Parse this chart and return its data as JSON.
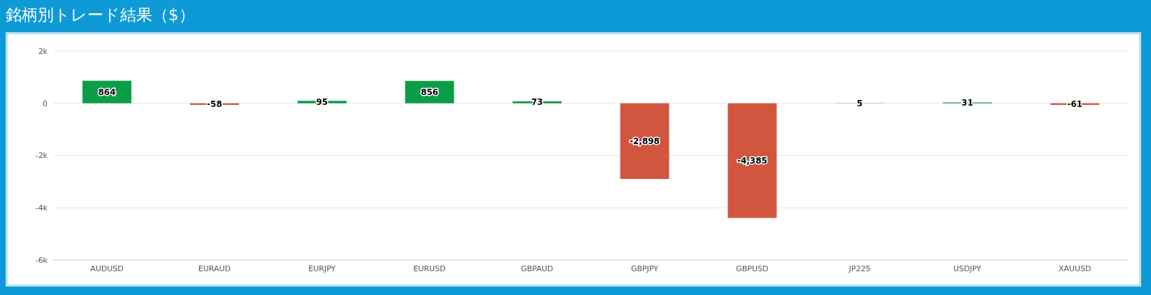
{
  "chart_data": {
    "type": "bar",
    "title": "銘柄別トレード結果（$）",
    "categories": [
      "AUDUSD",
      "EURAUD",
      "EURJPY",
      "EURUSD",
      "GBPAUD",
      "GBPJPY",
      "GBPUSD",
      "JP225",
      "USDJPY",
      "XAUUSD"
    ],
    "values": [
      864,
      -58,
      95,
      856,
      73,
      -2898,
      -4385,
      5,
      31,
      -61
    ],
    "colors": [
      "#0b9e46",
      "#d1553f",
      "#0b9e46",
      "#0b9e46",
      "#0b9e46",
      "#d1553f",
      "#d1553f",
      "#0b9e46",
      "#0b9e46",
      "#d1553f"
    ],
    "value_labels": [
      "864",
      "-58",
      "95",
      "856",
      "73",
      "-2,898",
      "-4,385",
      "5",
      "31",
      "-61"
    ],
    "ylim": [
      -6000,
      2000
    ],
    "yticks": [
      {
        "value": 2000,
        "label": "2k"
      },
      0,
      {
        "value": -2000,
        "label": "-2k"
      },
      {
        "value": -4000,
        "label": "-4k"
      },
      {
        "value": -6000,
        "label": "-6k"
      }
    ],
    "grid": "y",
    "legend": false
  }
}
